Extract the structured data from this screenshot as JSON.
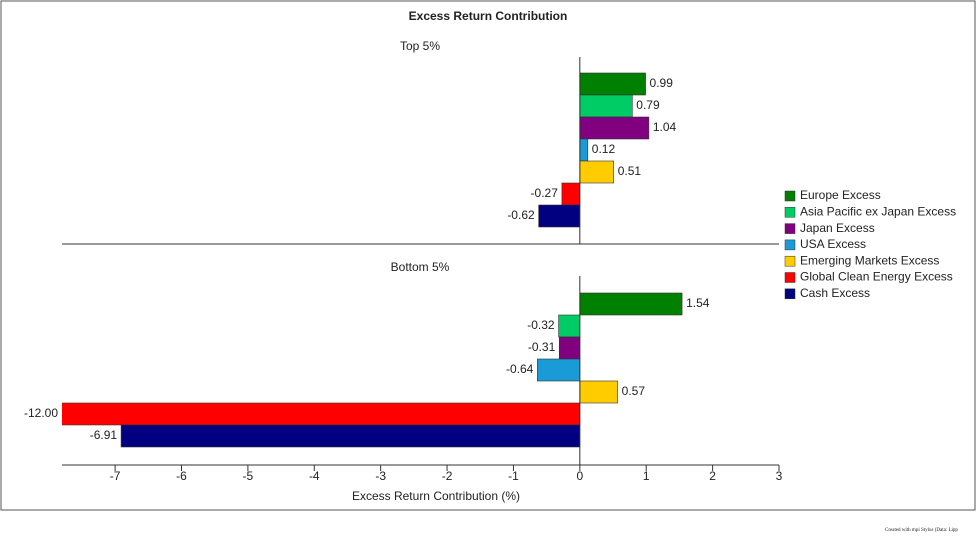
{
  "chart_data": {
    "type": "bar",
    "orientation": "horizontal",
    "title": "Excess Return Contribution",
    "xlabel": "Excess Return Contribution (%)",
    "categories": [
      "Top 5%",
      "Bottom 5%"
    ],
    "series": [
      {
        "name": "Europe Excess",
        "color": "#008000",
        "values": [
          0.99,
          1.54
        ]
      },
      {
        "name": "Asia Pacific ex Japan Excess",
        "color": "#00cc66",
        "values": [
          0.79,
          -0.32
        ]
      },
      {
        "name": "Japan Excess",
        "color": "#800080",
        "values": [
          1.04,
          -0.31
        ]
      },
      {
        "name": "USA Excess",
        "color": "#1a9ad6",
        "values": [
          0.12,
          -0.64
        ]
      },
      {
        "name": "Emerging Markets Excess",
        "color": "#ffcc00",
        "values": [
          0.51,
          0.57
        ]
      },
      {
        "name": "Global Clean Energy Excess",
        "color": "#ff0000",
        "values": [
          -0.27,
          -12
        ],
        "value_labels": [
          "-0.27",
          "-12.00"
        ]
      },
      {
        "name": "Cash Excess",
        "color": "#000080",
        "values": [
          -0.62,
          -6.91
        ]
      }
    ],
    "xlim": [
      -7.8,
      3
    ],
    "xticks": [
      -7,
      -6,
      -5,
      -4,
      -3,
      -2,
      -1,
      0,
      1,
      2,
      3
    ],
    "legend": "right",
    "footer": "Created with mpi Stylus (Data: Lipp"
  }
}
